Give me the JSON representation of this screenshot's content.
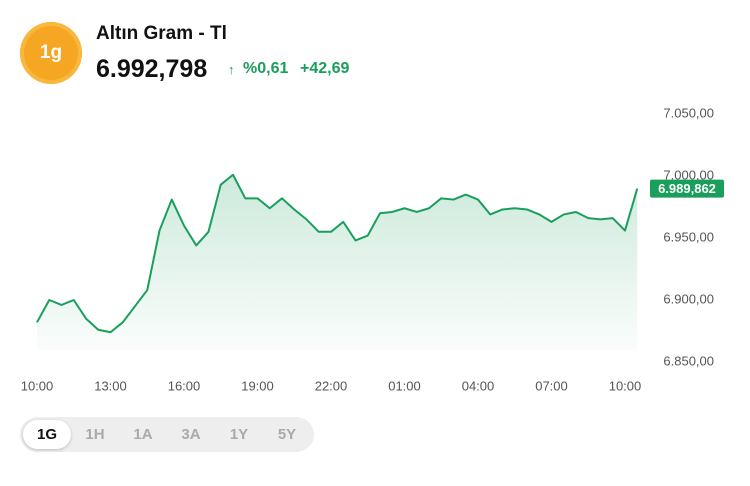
{
  "header": {
    "badge": "1g",
    "title": "Altın Gram - Tl",
    "price": "6.992,798",
    "change_pct": "%0,61",
    "change_abs": "+42,69"
  },
  "tabs": {
    "items": [
      "1G",
      "1H",
      "1A",
      "3A",
      "1Y",
      "5Y"
    ],
    "selected": 0
  },
  "chart_data": {
    "type": "area",
    "color": "#1a9e5c",
    "categories": [
      "10:00",
      null,
      null,
      null,
      null,
      null,
      "13:00",
      null,
      null,
      null,
      null,
      null,
      "16:00",
      null,
      null,
      null,
      null,
      null,
      "19:00",
      null,
      null,
      null,
      null,
      null,
      "22:00",
      null,
      null,
      null,
      null,
      null,
      "01:00",
      null,
      null,
      null,
      null,
      null,
      "04:00",
      null,
      null,
      null,
      null,
      null,
      "07:00",
      null,
      null,
      null,
      null,
      null,
      "10:00",
      null
    ],
    "values": [
      6882,
      6900,
      6896,
      6900,
      6885,
      6876,
      6874,
      6882,
      6895,
      6908,
      6956,
      6981,
      6960,
      6944,
      6955,
      6993,
      7001,
      6982,
      6982,
      6974,
      6982,
      6973,
      6965,
      6955,
      6955,
      6963,
      6948,
      6952,
      6970,
      6971,
      6974,
      6971,
      6974,
      6982,
      6981,
      6985,
      6981,
      6969,
      6973,
      6974,
      6973,
      6969,
      6963,
      6969,
      6971,
      6966,
      6965,
      6966,
      6956,
      6989.862
    ],
    "last_value_label": "6.989,862",
    "ylim": [
      6850,
      7050
    ],
    "yticks": [
      {
        "value": 6850,
        "label": "6.850,00"
      },
      {
        "value": 6900,
        "label": "6.900,00"
      },
      {
        "value": 6950,
        "label": "6.950,00"
      },
      {
        "value": 7000,
        "label": "7.000,00"
      },
      {
        "value": 7050,
        "label": "7.050,00"
      }
    ]
  }
}
